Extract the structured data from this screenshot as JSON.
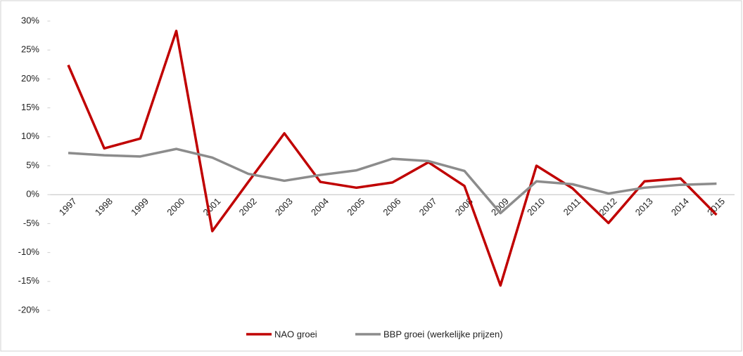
{
  "chart_data": {
    "type": "line",
    "categories": [
      "1997",
      "1998",
      "1999",
      "2000",
      "2001",
      "2002",
      "2003",
      "2004",
      "2005",
      "2006",
      "2007",
      "2008",
      "2009",
      "2010",
      "2011",
      "2012",
      "2013",
      "2014",
      "2015"
    ],
    "series": [
      {
        "name": "NAO groei",
        "color": "#c00000",
        "values": [
          22.4,
          8.0,
          9.7,
          28.3,
          -6.3,
          2.2,
          10.6,
          2.2,
          1.2,
          2.1,
          5.6,
          1.5,
          -15.7,
          5.0,
          1.1,
          -4.9,
          2.3,
          2.8,
          -3.5
        ]
      },
      {
        "name": "BBP groei (werkelijke prijzen)",
        "color": "#8c8c8c",
        "values": [
          7.2,
          6.8,
          6.6,
          7.9,
          6.4,
          3.6,
          2.4,
          3.4,
          4.2,
          6.2,
          5.8,
          4.1,
          -3.2,
          2.3,
          1.8,
          0.2,
          1.2,
          1.7,
          1.9
        ]
      }
    ],
    "ylim": [
      -20,
      30
    ],
    "yticks": [
      {
        "value": -20,
        "label": "-20%"
      },
      {
        "value": -15,
        "label": "-15%"
      },
      {
        "value": -10,
        "label": "-10%"
      },
      {
        "value": -5,
        "label": "-5%"
      },
      {
        "value": 0,
        "label": "0%"
      },
      {
        "value": 5,
        "label": "5%"
      },
      {
        "value": 10,
        "label": "10%"
      },
      {
        "value": 15,
        "label": "15%"
      },
      {
        "value": 20,
        "label": "20%"
      },
      {
        "value": 25,
        "label": "25%"
      },
      {
        "value": 30,
        "label": "30%"
      }
    ],
    "legend": "bottom"
  }
}
